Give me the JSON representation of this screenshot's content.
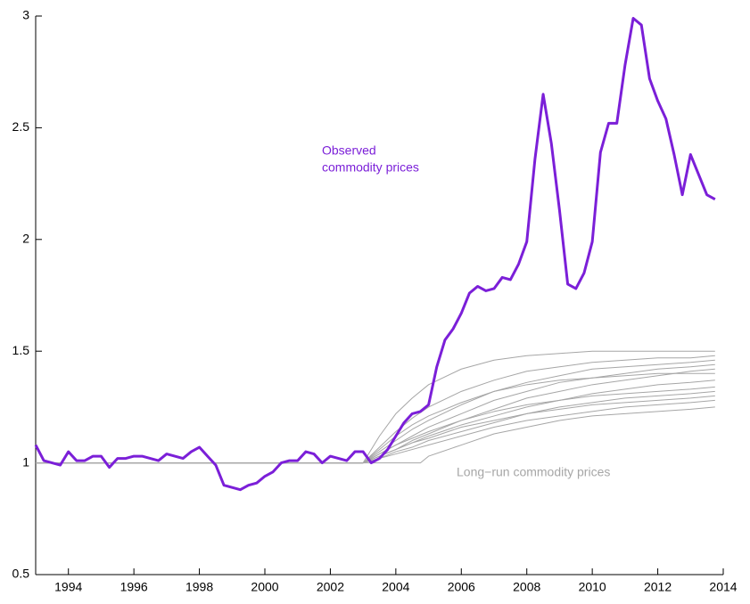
{
  "chart_data": {
    "type": "line",
    "xlim": [
      1993,
      2014
    ],
    "ylim": [
      0.5,
      3
    ],
    "xticks": [
      1994,
      1996,
      1998,
      2000,
      2002,
      2004,
      2006,
      2008,
      2010,
      2012,
      2014
    ],
    "yticks": [
      0.5,
      1,
      1.5,
      2,
      2.5,
      3
    ],
    "annotations": [
      {
        "lines": [
          "Observed",
          "commodity prices"
        ],
        "color": "#7b1fd8"
      },
      {
        "lines": [
          "Long−run commodity prices"
        ],
        "color": "#a6a6a6"
      }
    ],
    "series": [
      {
        "color": "#a6a6a6",
        "x": [
          1993,
          2003,
          2003.5,
          2004,
          2004.5,
          2005,
          2006,
          2007,
          2008,
          2009,
          2010,
          2011,
          2012,
          2013,
          2013.75
        ],
        "values": [
          1,
          1,
          1.12,
          1.22,
          1.29,
          1.35,
          1.42,
          1.46,
          1.48,
          1.49,
          1.5,
          1.5,
          1.5,
          1.5,
          1.5
        ]
      },
      {
        "color": "#a6a6a6",
        "x": [
          1993,
          2003,
          2003.5,
          2004,
          2004.5,
          2005,
          2006,
          2007,
          2008,
          2009,
          2010,
          2011,
          2012,
          2013,
          2013.75
        ],
        "values": [
          1,
          1,
          1.07,
          1.14,
          1.2,
          1.25,
          1.32,
          1.37,
          1.41,
          1.43,
          1.45,
          1.46,
          1.47,
          1.47,
          1.48
        ]
      },
      {
        "color": "#a6a6a6",
        "x": [
          1993,
          2003,
          2003.5,
          2004,
          2004.5,
          2005,
          2006,
          2007,
          2008,
          2009,
          2010,
          2011,
          2012,
          2013,
          2013.75
        ],
        "values": [
          1,
          1,
          1.05,
          1.1,
          1.15,
          1.19,
          1.26,
          1.32,
          1.36,
          1.39,
          1.42,
          1.43,
          1.44,
          1.45,
          1.46
        ]
      },
      {
        "color": "#a6a6a6",
        "x": [
          1993,
          2003,
          2003.5,
          2004,
          2004.5,
          2005,
          2006,
          2007,
          2008,
          2009,
          2010,
          2011,
          2012,
          2013,
          2013.75
        ],
        "values": [
          1,
          1,
          1.04,
          1.08,
          1.12,
          1.16,
          1.22,
          1.28,
          1.32,
          1.36,
          1.38,
          1.4,
          1.42,
          1.43,
          1.44
        ]
      },
      {
        "color": "#a6a6a6",
        "x": [
          1993,
          2003,
          2003.5,
          2004,
          2004.5,
          2005,
          2006,
          2007,
          2008,
          2009,
          2010,
          2011,
          2012,
          2013,
          2013.75
        ],
        "values": [
          1,
          1,
          1.03,
          1.06,
          1.1,
          1.13,
          1.19,
          1.24,
          1.29,
          1.32,
          1.35,
          1.37,
          1.39,
          1.41,
          1.42
        ]
      },
      {
        "color": "#a6a6a6",
        "x": [
          1993,
          2003,
          2003.5,
          2004,
          2004.5,
          2005,
          2006,
          2007,
          2008,
          2009,
          2010,
          2011,
          2012,
          2013,
          2013.75
        ],
        "values": [
          1,
          1,
          1.06,
          1.12,
          1.17,
          1.21,
          1.27,
          1.32,
          1.35,
          1.37,
          1.38,
          1.39,
          1.4,
          1.4,
          1.4
        ]
      },
      {
        "color": "#a6a6a6",
        "x": [
          1993,
          2003,
          2003.5,
          2004,
          2004.5,
          2005,
          2006,
          2007,
          2008,
          2009,
          2010,
          2011,
          2012,
          2013,
          2013.75
        ],
        "values": [
          1,
          1,
          1.03,
          1.06,
          1.09,
          1.12,
          1.17,
          1.21,
          1.25,
          1.28,
          1.31,
          1.33,
          1.35,
          1.36,
          1.37
        ]
      },
      {
        "color": "#a6a6a6",
        "x": [
          1993,
          2003,
          2003.5,
          2004,
          2004.5,
          2005,
          2006,
          2007,
          2008,
          2009,
          2010,
          2011,
          2012,
          2013,
          2013.75
        ],
        "values": [
          1,
          1,
          1.04,
          1.08,
          1.11,
          1.14,
          1.19,
          1.23,
          1.26,
          1.28,
          1.3,
          1.31,
          1.32,
          1.33,
          1.34
        ]
      },
      {
        "color": "#a6a6a6",
        "x": [
          1993,
          2003,
          2003.5,
          2004,
          2004.5,
          2005,
          2006,
          2007,
          2008,
          2009,
          2010,
          2011,
          2012,
          2013,
          2013.75
        ],
        "values": [
          1,
          1,
          1.02,
          1.05,
          1.07,
          1.1,
          1.14,
          1.18,
          1.22,
          1.25,
          1.27,
          1.29,
          1.3,
          1.31,
          1.32
        ]
      },
      {
        "color": "#a6a6a6",
        "x": [
          1993,
          2003,
          2003.5,
          2004,
          2004.5,
          2005,
          2006,
          2007,
          2008,
          2009,
          2010,
          2011,
          2012,
          2013,
          2013.75
        ],
        "values": [
          1,
          1,
          1.03,
          1.06,
          1.09,
          1.11,
          1.16,
          1.19,
          1.22,
          1.24,
          1.26,
          1.27,
          1.28,
          1.29,
          1.3
        ]
      },
      {
        "color": "#a6a6a6",
        "x": [
          1993,
          2003,
          2003.5,
          2004,
          2004.5,
          2005,
          2006,
          2007,
          2008,
          2009,
          2010,
          2011,
          2012,
          2013,
          2013.75
        ],
        "values": [
          1,
          1,
          1.02,
          1.04,
          1.06,
          1.08,
          1.12,
          1.16,
          1.19,
          1.21,
          1.23,
          1.25,
          1.26,
          1.27,
          1.28
        ]
      },
      {
        "color": "#a6a6a6",
        "x": [
          1993,
          2003,
          2003.5,
          2004,
          2004.75,
          2005,
          2006,
          2007,
          2008,
          2009,
          2010,
          2011,
          2012,
          2013,
          2013.75
        ],
        "values": [
          1,
          1,
          1,
          1,
          1,
          1.03,
          1.08,
          1.13,
          1.16,
          1.19,
          1.21,
          1.22,
          1.23,
          1.24,
          1.25
        ]
      },
      {
        "color": "#7b1fd8",
        "width": 3,
        "x": [
          1993,
          1993.25,
          1993.5,
          1993.75,
          1994,
          1994.25,
          1994.5,
          1994.75,
          1995,
          1995.25,
          1995.5,
          1995.75,
          1996,
          1996.25,
          1996.5,
          1996.75,
          1997,
          1997.25,
          1997.5,
          1997.75,
          1998,
          1998.25,
          1998.5,
          1998.75,
          1999,
          1999.25,
          1999.5,
          1999.75,
          2000,
          2000.25,
          2000.5,
          2000.75,
          2001,
          2001.25,
          2001.5,
          2001.75,
          2002,
          2002.25,
          2002.5,
          2002.75,
          2003,
          2003.25,
          2003.5,
          2003.75,
          2004,
          2004.25,
          2004.5,
          2004.75,
          2005,
          2005.25,
          2005.5,
          2005.75,
          2006,
          2006.25,
          2006.5,
          2006.75,
          2007,
          2007.25,
          2007.5,
          2007.75,
          2008,
          2008.25,
          2008.5,
          2008.75,
          2009,
          2009.25,
          2009.5,
          2009.75,
          2010,
          2010.25,
          2010.5,
          2010.75,
          2011,
          2011.25,
          2011.5,
          2011.75,
          2012,
          2012.25,
          2012.5,
          2012.75,
          2013,
          2013.25,
          2013.5,
          2013.75
        ],
        "values": [
          1.08,
          1.01,
          1.0,
          0.99,
          1.05,
          1.01,
          1.01,
          1.03,
          1.03,
          0.98,
          1.02,
          1.02,
          1.03,
          1.03,
          1.02,
          1.01,
          1.04,
          1.03,
          1.02,
          1.05,
          1.07,
          1.03,
          0.99,
          0.9,
          0.89,
          0.88,
          0.9,
          0.91,
          0.94,
          0.96,
          1.0,
          1.01,
          1.01,
          1.05,
          1.04,
          1.0,
          1.03,
          1.02,
          1.01,
          1.05,
          1.05,
          1.0,
          1.02,
          1.06,
          1.12,
          1.18,
          1.22,
          1.23,
          1.26,
          1.43,
          1.55,
          1.6,
          1.67,
          1.76,
          1.79,
          1.77,
          1.78,
          1.83,
          1.82,
          1.89,
          1.99,
          2.36,
          2.65,
          2.43,
          2.13,
          1.8,
          1.78,
          1.85,
          1.99,
          2.39,
          2.52,
          2.52,
          2.78,
          2.99,
          2.96,
          2.72,
          2.62,
          2.54,
          2.38,
          2.2,
          2.38,
          2.29,
          2.2,
          2.18
        ]
      }
    ]
  }
}
